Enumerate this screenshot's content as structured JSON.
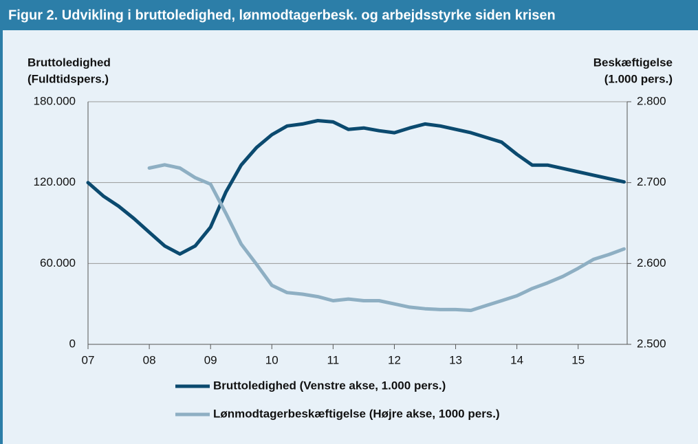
{
  "chart_data": {
    "type": "line",
    "title": "Figur 2. Udvikling i bruttoledighed, lønmodtagerbesk. og arbejdsstyrke siden krisen",
    "y_label": [
      "Bruttoledighed",
      "(Fuldtidspers.)"
    ],
    "y2_label": [
      "Beskæftigelse",
      "(1.000 pers.)"
    ],
    "x": [
      2007,
      2007.25,
      2007.5,
      2007.75,
      2008,
      2008.25,
      2008.5,
      2008.75,
      2009,
      2009.25,
      2009.5,
      2009.75,
      2010,
      2010.25,
      2010.5,
      2010.75,
      2011,
      2011.25,
      2011.5,
      2011.75,
      2012,
      2012.25,
      2012.5,
      2012.75,
      2013,
      2013.25,
      2013.5,
      2013.75,
      2014,
      2014.25,
      2014.5,
      2014.75,
      2015,
      2015.25,
      2015.5,
      2015.75
    ],
    "series": [
      {
        "name": "Bruttoledighed (Venstre akse, 1.000 pers.)",
        "color": "#0b4a6f",
        "values": [
          120000,
          110000,
          102500,
          93300,
          83100,
          73000,
          67000,
          73000,
          87000,
          113000,
          133000,
          146000,
          155500,
          162000,
          163500,
          166000,
          165000,
          159500,
          160500,
          158500,
          157000,
          160500,
          163500,
          162000,
          159500,
          157000,
          153500,
          150000,
          141000,
          133000,
          133000,
          130500,
          128000,
          125500,
          123000,
          120500
        ]
      },
      {
        "name": "Lønmodtagerbeskæftigelse (Højre akse, 1000 pers.)",
        "color": "#8eafc3",
        "axis": "y2",
        "values": [
          null,
          null,
          null,
          null,
          2718,
          2722,
          2718,
          2706,
          2698,
          2662,
          2624,
          2599,
          2573,
          2564,
          2562,
          2559,
          2554,
          2556,
          2554,
          2554,
          2550,
          2546,
          2544,
          2543,
          2543,
          2542,
          2548,
          2554,
          2560,
          2569,
          2576,
          2584,
          2594,
          2605,
          2611,
          2618
        ]
      }
    ],
    "xlim": [
      2007,
      2015.8
    ],
    "xticks": [
      {
        "value": 2007,
        "label": "07"
      },
      {
        "value": 2008,
        "label": "08"
      },
      {
        "value": 2009,
        "label": "09"
      },
      {
        "value": 2010,
        "label": "10"
      },
      {
        "value": 2011,
        "label": "11"
      },
      {
        "value": 2012,
        "label": "12"
      },
      {
        "value": 2013,
        "label": "13"
      },
      {
        "value": 2014,
        "label": "14"
      },
      {
        "value": 2015,
        "label": "15"
      }
    ],
    "ylim": [
      0,
      180000
    ],
    "yticks": [
      0,
      {
        "value": 60000,
        "label": "60.000"
      },
      {
        "value": 120000,
        "label": "120.000"
      },
      {
        "value": 180000,
        "label": "180.000"
      }
    ],
    "y2lim": [
      2500,
      2800
    ],
    "y2ticks": [
      {
        "value": 2500,
        "label": "2.500"
      },
      {
        "value": 2600,
        "label": "2.600"
      },
      {
        "value": 2700,
        "label": "2.700"
      },
      {
        "value": 2800,
        "label": "2.800"
      }
    ],
    "grid": true,
    "legend": "bottom"
  }
}
